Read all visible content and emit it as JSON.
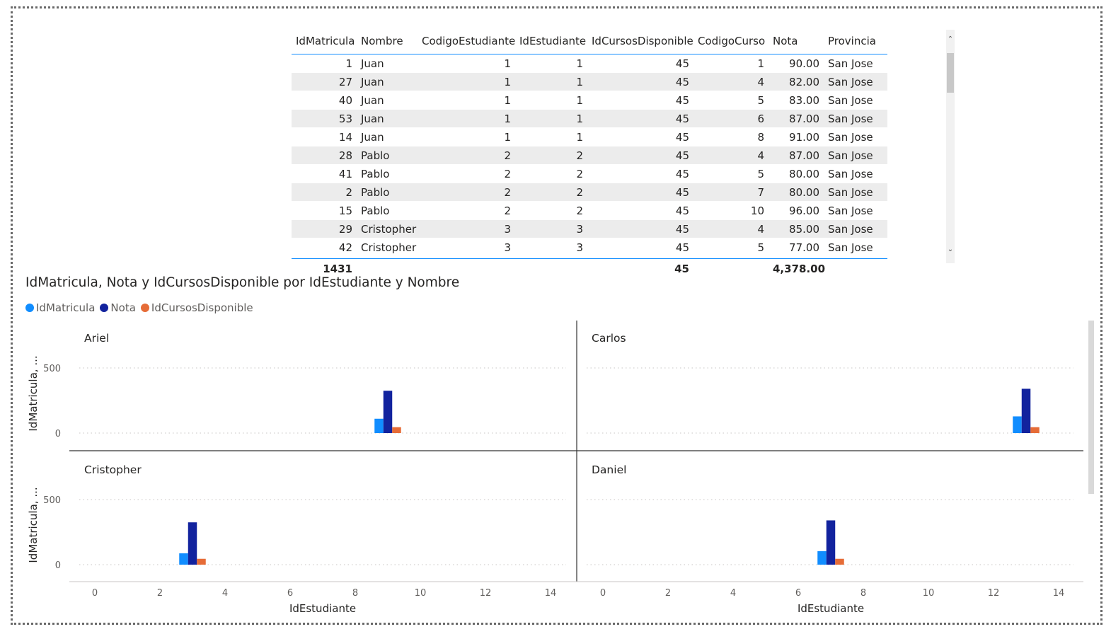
{
  "table": {
    "columns": [
      "IdMatricula",
      "Nombre",
      "CodigoEstudiante",
      "IdEstudiante",
      "IdCursosDisponible",
      "CodigoCurso",
      "Nota",
      "Provincia"
    ],
    "rows": [
      [
        "1",
        "Juan",
        "1",
        "1",
        "45",
        "1",
        "90.00",
        "San Jose"
      ],
      [
        "27",
        "Juan",
        "1",
        "1",
        "45",
        "4",
        "82.00",
        "San Jose"
      ],
      [
        "40",
        "Juan",
        "1",
        "1",
        "45",
        "5",
        "83.00",
        "San Jose"
      ],
      [
        "53",
        "Juan",
        "1",
        "1",
        "45",
        "6",
        "87.00",
        "San Jose"
      ],
      [
        "14",
        "Juan",
        "1",
        "1",
        "45",
        "8",
        "91.00",
        "San Jose"
      ],
      [
        "28",
        "Pablo",
        "2",
        "2",
        "45",
        "4",
        "87.00",
        "San Jose"
      ],
      [
        "41",
        "Pablo",
        "2",
        "2",
        "45",
        "5",
        "80.00",
        "San Jose"
      ],
      [
        "2",
        "Pablo",
        "2",
        "2",
        "45",
        "7",
        "80.00",
        "San Jose"
      ],
      [
        "15",
        "Pablo",
        "2",
        "2",
        "45",
        "10",
        "96.00",
        "San Jose"
      ],
      [
        "29",
        "Cristopher",
        "3",
        "3",
        "45",
        "4",
        "85.00",
        "San Jose"
      ],
      [
        "42",
        "Cristopher",
        "3",
        "3",
        "45",
        "5",
        "77.00",
        "San Jose"
      ]
    ],
    "totals": [
      "1431",
      "",
      "",
      "",
      "45",
      "",
      "4,378.00",
      ""
    ],
    "scroll_up_icon": "chevron-up-icon",
    "scroll_down_icon": "chevron-down-icon"
  },
  "chart_data": {
    "type": "bar",
    "title": "IdMatricula, Nota y IdCursosDisponible por IdEstudiante y Nombre",
    "xlabel": "IdEstudiante",
    "ylabel": "IdMatricula, ...",
    "xlim": [
      0,
      14
    ],
    "x_ticks": [
      0,
      2,
      4,
      6,
      8,
      10,
      12,
      14
    ],
    "ylim": [
      0,
      500
    ],
    "y_ticks": [
      0,
      500
    ],
    "grid": true,
    "legend_placement": "top-left",
    "series": [
      {
        "name": "IdMatricula",
        "color": "#118dff"
      },
      {
        "name": "Nota",
        "color": "#12239e"
      },
      {
        "name": "IdCursosDisponible",
        "color": "#e66c37"
      }
    ],
    "panels": [
      {
        "name": "Ariel",
        "x": 9,
        "values": {
          "IdMatricula": 110,
          "Nota": 325,
          "IdCursosDisponible": 45
        }
      },
      {
        "name": "Carlos",
        "x": 13,
        "values": {
          "IdMatricula": 128,
          "Nota": 340,
          "IdCursosDisponible": 45
        }
      },
      {
        "name": "Cristopher",
        "x": 3,
        "values": {
          "IdMatricula": 87,
          "Nota": 325,
          "IdCursosDisponible": 45
        }
      },
      {
        "name": "Daniel",
        "x": 7,
        "values": {
          "IdMatricula": 104,
          "Nota": 340,
          "IdCursosDisponible": 45
        }
      }
    ]
  }
}
